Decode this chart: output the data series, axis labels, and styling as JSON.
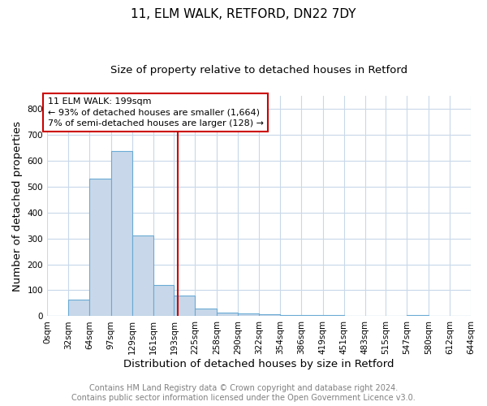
{
  "title": "11, ELM WALK, RETFORD, DN22 7DY",
  "subtitle": "Size of property relative to detached houses in Retford",
  "xlabel": "Distribution of detached houses by size in Retford",
  "ylabel": "Number of detached properties",
  "bin_edges": [
    0,
    32,
    64,
    97,
    129,
    161,
    193,
    225,
    258,
    290,
    322,
    354,
    386,
    419,
    451,
    483,
    515,
    547,
    580,
    612,
    644
  ],
  "bar_heights": [
    0,
    65,
    530,
    635,
    310,
    120,
    80,
    30,
    15,
    10,
    8,
    5,
    5,
    5,
    0,
    0,
    0,
    5,
    0,
    0
  ],
  "bar_color": "#c8d8ea",
  "bar_edge_color": "#6aaad4",
  "ylim": [
    0,
    850
  ],
  "yticks": [
    0,
    100,
    200,
    300,
    400,
    500,
    600,
    700,
    800
  ],
  "property_sqm": 199,
  "red_line_color": "#cc0000",
  "annotation_line1": "11 ELM WALK: 199sqm",
  "annotation_line2": "← 93% of detached houses are smaller (1,664)",
  "annotation_line3": "7% of semi-detached houses are larger (128) →",
  "annotation_box_color": "#cc0000",
  "footer_line1": "Contains HM Land Registry data © Crown copyright and database right 2024.",
  "footer_line2": "Contains public sector information licensed under the Open Government Licence v3.0.",
  "bg_color": "#ffffff",
  "grid_color": "#c8d8ea",
  "title_fontsize": 11,
  "subtitle_fontsize": 9.5,
  "axis_label_fontsize": 9.5,
  "tick_fontsize": 7.5,
  "annotation_fontsize": 8,
  "footer_fontsize": 7
}
